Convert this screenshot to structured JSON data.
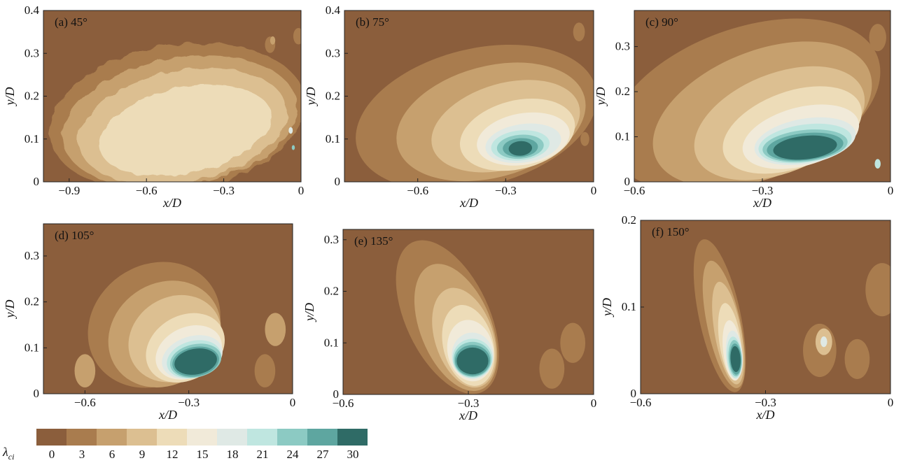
{
  "chart_data": [
    {
      "type": "heatmap",
      "panel_label": "(a) 45°",
      "xlabel": "x/D",
      "ylabel": "y/D",
      "xlim": [
        -1.0,
        0
      ],
      "ylim": [
        0,
        0.4
      ],
      "xticks": [
        "−0.9",
        "−0.6",
        "−0.3",
        "0"
      ],
      "yticks": [
        "0",
        "0.1",
        "0.2",
        "0.3",
        "0.4"
      ],
      "vortex_peak": {
        "x": -0.45,
        "y": 0.14,
        "lambda_ci": 12
      }
    },
    {
      "type": "heatmap",
      "panel_label": "(b) 75°",
      "xlabel": "x/D",
      "ylabel": "y/D",
      "xlim": [
        -0.85,
        0
      ],
      "ylim": [
        0,
        0.4
      ],
      "xticks": [
        "−0.6",
        "−0.3",
        "0"
      ],
      "yticks": [
        "0",
        "0.1",
        "0.2",
        "0.3",
        "0.4"
      ],
      "vortex_peak": {
        "x": -0.25,
        "y": 0.08,
        "lambda_ci": 30
      }
    },
    {
      "type": "heatmap",
      "panel_label": "(c) 90°",
      "xlabel": "x/D",
      "ylabel": "y/D",
      "xlim": [
        -0.6,
        0
      ],
      "ylim": [
        0,
        0.38
      ],
      "xticks": [
        "−0.6",
        "−0.3",
        "0"
      ],
      "yticks": [
        "0",
        "0.1",
        "0.2",
        "0.3"
      ],
      "vortex_peak": {
        "x": -0.2,
        "y": 0.08,
        "lambda_ci": 30
      }
    },
    {
      "type": "heatmap",
      "panel_label": "(d) 105°",
      "xlabel": "x/D",
      "ylabel": "y/D",
      "xlim": [
        -0.72,
        0
      ],
      "ylim": [
        0,
        0.37
      ],
      "xticks": [
        "−0.6",
        "−0.3",
        "0"
      ],
      "yticks": [
        "0",
        "0.1",
        "0.2",
        "0.3"
      ],
      "vortex_peak": {
        "x": -0.28,
        "y": 0.07,
        "lambda_ci": 30
      }
    },
    {
      "type": "heatmap",
      "panel_label": "(e) 135°",
      "xlabel": "x/D",
      "ylabel": "y/D",
      "xlim": [
        -0.6,
        0
      ],
      "ylim": [
        0,
        0.32
      ],
      "xticks": [
        "−0.6",
        "−0.3",
        "0"
      ],
      "yticks": [
        "0",
        "0.1",
        "0.2",
        "0.3"
      ],
      "vortex_peak": {
        "x": -0.29,
        "y": 0.065,
        "lambda_ci": 30
      }
    },
    {
      "type": "heatmap",
      "panel_label": "(f) 150°",
      "xlabel": "x/D",
      "ylabel": "y/D",
      "xlim": [
        -0.6,
        0
      ],
      "ylim": [
        0,
        0.2
      ],
      "xticks": [
        "−0.6",
        "−0.3",
        "0"
      ],
      "yticks": [
        "0",
        "0.1",
        "0.2"
      ],
      "vortex_peak": {
        "x": -0.37,
        "y": 0.04,
        "lambda_ci": 30
      }
    }
  ],
  "colorbar": {
    "label_main": "λ",
    "label_sub": "ci",
    "levels": [
      0,
      3,
      6,
      9,
      12,
      15,
      18,
      21,
      24,
      27,
      30
    ],
    "tick_labels": [
      "0",
      "3",
      "6",
      "9",
      "12",
      "15",
      "18",
      "21",
      "24",
      "27",
      "30"
    ],
    "colors": [
      "#8b5e3c",
      "#a97c4e",
      "#c6a06e",
      "#dcbf91",
      "#eddcb8",
      "#f1ead9",
      "#dfe9e5",
      "#bfe6e0",
      "#8ccac3",
      "#5ea6a0",
      "#2f6b66"
    ]
  }
}
